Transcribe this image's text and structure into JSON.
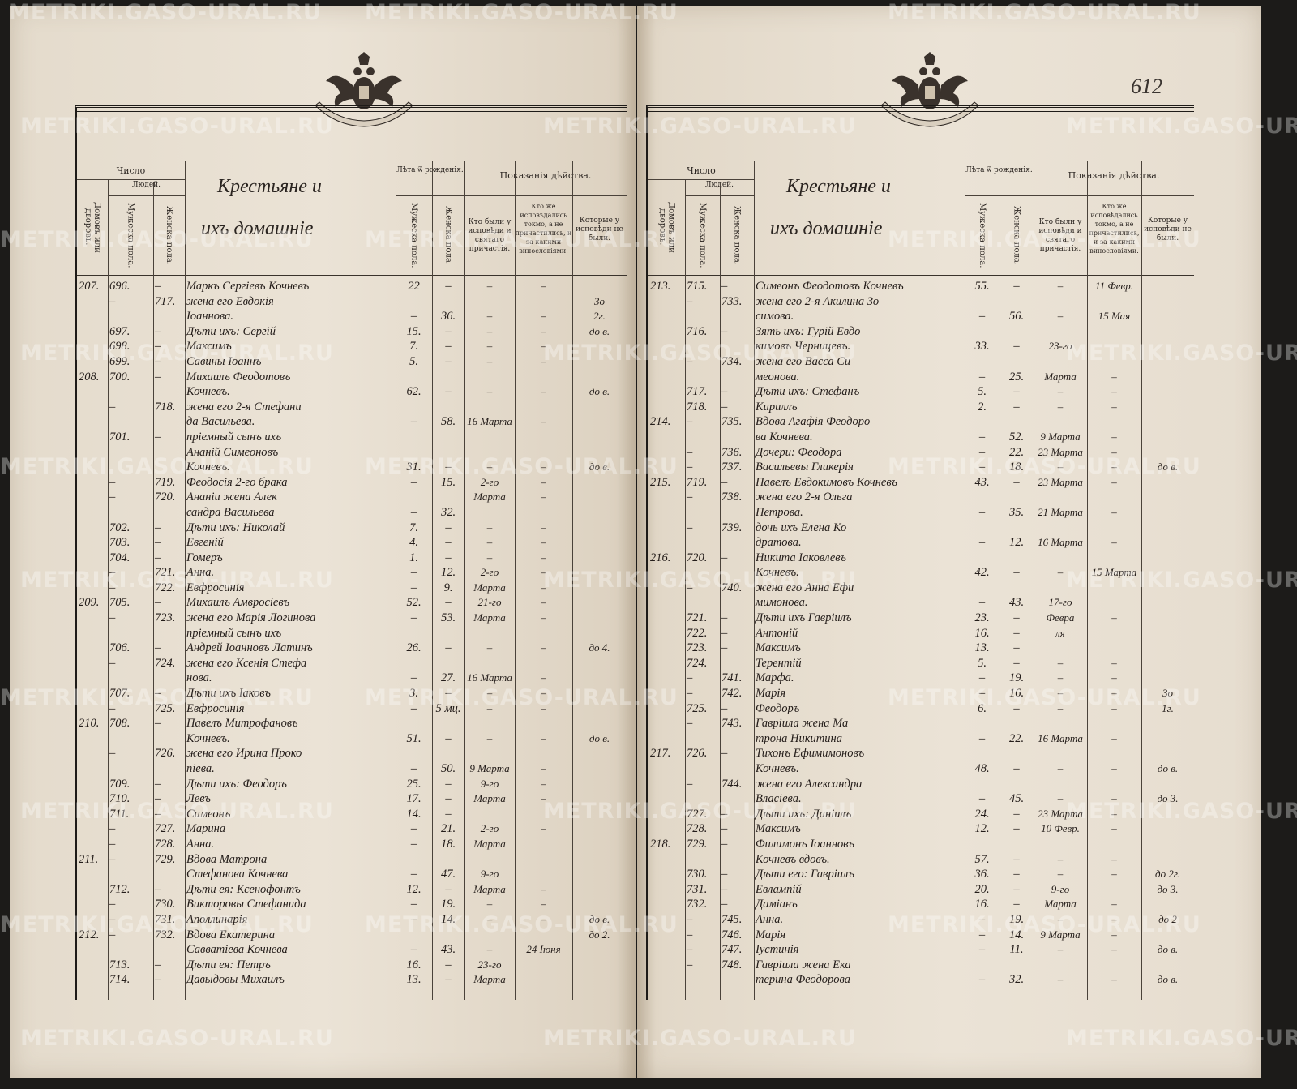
{
  "document": {
    "folio_number": "612",
    "watermark": "METRIKI.GASO-URAL.RU",
    "emblem": "double-headed-eagle-coat-of-arms"
  },
  "header": {
    "number": "Число",
    "people": "Людей.",
    "households": "Домовъ или дворовъ.",
    "male": "Мужеска пола.",
    "female": "Женска пола.",
    "title_line1": "Крестьяне и",
    "title_line2": "ихъ домашніе",
    "age": "Лѣта ѿ рожденія.",
    "age_male": "Мужеска пола.",
    "age_female": "Женска пола.",
    "action": "Показанія дѣйства.",
    "confessed": "Кто были у исповѣди и святаго причастія.",
    "confessed_only": "Кто же исповѣдались токмо, а не причастились, и за какими винословіями.",
    "absent": "Которые у исповѣди не были."
  },
  "left_rows": [
    [
      "207.",
      "696.",
      "–",
      "Маркъ Сергіевъ Кочневъ",
      "22",
      "–",
      "–",
      "–",
      ""
    ],
    [
      "",
      "–",
      "717.",
      "жена его Евдокія",
      "",
      "",
      "",
      "",
      "3о"
    ],
    [
      "",
      "",
      "",
      "Іоаннова.",
      "–",
      "36.",
      "–",
      "–",
      "2г."
    ],
    [
      "",
      "697.",
      "–",
      "Дѣти ихъ: Сергій",
      "15.",
      "–",
      "–",
      "–",
      "до в."
    ],
    [
      "",
      "698.",
      "–",
      "Максимъ",
      "7.",
      "–",
      "–",
      "–",
      ""
    ],
    [
      "",
      "699.",
      "–",
      "Савины Іоаннъ",
      "5.",
      "–",
      "–",
      "–",
      ""
    ],
    [
      "208.",
      "700.",
      "–",
      "Михаилъ Феодотовъ",
      "",
      "",
      "",
      "",
      ""
    ],
    [
      "",
      "",
      "",
      "Кочневъ.",
      "62.",
      "–",
      "–",
      "–",
      "до в."
    ],
    [
      "",
      "–",
      "718.",
      "жена его 2-я Стефани",
      "",
      "",
      "",
      "",
      ""
    ],
    [
      "",
      "",
      "",
      "да Васильева.",
      "–",
      "58.",
      "16 Марта",
      "–",
      ""
    ],
    [
      "",
      "701.",
      "–",
      "пріемный сынъ ихъ",
      "",
      "",
      "",
      "",
      ""
    ],
    [
      "",
      "",
      "",
      "Ананій Симеоновъ",
      "",
      "",
      "",
      "",
      ""
    ],
    [
      "",
      "",
      "",
      "Кочневъ.",
      "31.",
      "–",
      "–",
      "–",
      "до в."
    ],
    [
      "",
      "–",
      "719.",
      "Феодосія 2-го брака",
      "–",
      "15.",
      "2-го",
      "–",
      ""
    ],
    [
      "",
      "–",
      "720.",
      "Ананіи жена Алек",
      "",
      "",
      "Марта",
      "–",
      ""
    ],
    [
      "",
      "",
      "",
      "сандра Васильева",
      "–",
      "32.",
      "",
      "",
      ""
    ],
    [
      "",
      "702.",
      "–",
      "Дѣти ихъ: Николай",
      "7.",
      "–",
      "–",
      "–",
      ""
    ],
    [
      "",
      "703.",
      "–",
      "Евгеній",
      "4.",
      "–",
      "–",
      "–",
      ""
    ],
    [
      "",
      "704.",
      "–",
      "Гомеръ",
      "1.",
      "–",
      "–",
      "–",
      ""
    ],
    [
      "",
      "–",
      "721.",
      "Анна.",
      "–",
      "12.",
      "2-го",
      "–",
      ""
    ],
    [
      "",
      "–",
      "722.",
      "Евфросинія",
      "–",
      "9.",
      "Марта",
      "–",
      ""
    ],
    [
      "209.",
      "705.",
      "–",
      "Михаилъ Амвросіевъ",
      "52.",
      "–",
      "21-го",
      "–",
      ""
    ],
    [
      "",
      "–",
      "723.",
      "жена его Марія Логинова",
      "–",
      "53.",
      "Марта",
      "–",
      ""
    ],
    [
      "",
      "",
      "",
      "пріемный сынъ ихъ",
      "",
      "",
      "",
      "",
      ""
    ],
    [
      "",
      "706.",
      "–",
      "Андрей Іоанновъ Латинъ",
      "26.",
      "–",
      "–",
      "–",
      "до 4."
    ],
    [
      "",
      "–",
      "724.",
      "жена его Ксенія Стефа",
      "",
      "",
      "",
      "",
      ""
    ],
    [
      "",
      "",
      "",
      "нова.",
      "–",
      "27.",
      "16 Марта",
      "–",
      ""
    ],
    [
      "",
      "707.",
      "–",
      "Дѣти ихъ Іаковъ",
      "3.",
      "–",
      "–",
      "–",
      ""
    ],
    [
      "",
      "–",
      "725.",
      "Евфросинія",
      "–",
      "5 мц.",
      "–",
      "–",
      ""
    ],
    [
      "210.",
      "708.",
      "–",
      "Павелъ Митрофановъ",
      "",
      "",
      "",
      "",
      ""
    ],
    [
      "",
      "",
      "",
      "Кочневъ.",
      "51.",
      "–",
      "–",
      "–",
      "до в."
    ],
    [
      "",
      "–",
      "726.",
      "жена его Ирина Проко",
      "",
      "",
      "",
      "",
      ""
    ],
    [
      "",
      "",
      "",
      "піева.",
      "–",
      "50.",
      "9 Марта",
      "–",
      ""
    ],
    [
      "",
      "709.",
      "–",
      "Дѣти ихъ: Феодоръ",
      "25.",
      "–",
      "9-го",
      "–",
      ""
    ],
    [
      "",
      "710.",
      "–",
      "Левъ",
      "17.",
      "–",
      "Марта",
      "–",
      ""
    ],
    [
      "",
      "711.",
      "–",
      "Симеонъ",
      "14.",
      "–",
      "",
      "",
      ""
    ],
    [
      "",
      "–",
      "727.",
      "Марина",
      "–",
      "21.",
      "2-го",
      "–",
      ""
    ],
    [
      "",
      "–",
      "728.",
      "Анна.",
      "–",
      "18.",
      "Марта",
      "",
      ""
    ],
    [
      "211.",
      "–",
      "729.",
      "Вдова Матрона",
      "",
      "",
      "",
      "",
      ""
    ],
    [
      "",
      "",
      "",
      "Стефанова Кочнева",
      "–",
      "47.",
      "9-го",
      "",
      ""
    ],
    [
      "",
      "712.",
      "–",
      "Дѣти ея: Ксенофонтъ",
      "12.",
      "–",
      "Марта",
      "–",
      ""
    ],
    [
      "",
      "–",
      "730.",
      "Викторовы Стефанида",
      "–",
      "19.",
      "–",
      "–",
      ""
    ],
    [
      "",
      "–",
      "731.",
      "Аполлинарія",
      "–",
      "14.",
      "–",
      "–",
      "до в."
    ],
    [
      "212.",
      "–",
      "732.",
      "Вдова Екатерина",
      "",
      "",
      "",
      "",
      "до 2."
    ],
    [
      "",
      "",
      "",
      "Савватіева Кочнева",
      "–",
      "43.",
      "–",
      "24 Іюня",
      ""
    ],
    [
      "",
      "713.",
      "–",
      "Дѣти ея: Петръ",
      "16.",
      "–",
      "23-го",
      "",
      ""
    ],
    [
      "",
      "714.",
      "–",
      "Давыдовы Михаилъ",
      "13.",
      "–",
      "Марта",
      "",
      ""
    ]
  ],
  "right_rows": [
    [
      "213.",
      "715.",
      "–",
      "Симеонъ Феодотовъ Кочневъ",
      "55.",
      "–",
      "–",
      "11 Февр.",
      ""
    ],
    [
      "",
      "–",
      "733.",
      "жена его 2-я Акилина Зо",
      "",
      "",
      "",
      "",
      ""
    ],
    [
      "",
      "",
      "",
      "симова.",
      "–",
      "56.",
      "–",
      "15 Мая",
      ""
    ],
    [
      "",
      "716.",
      "–",
      "Зять ихъ: Гурій Евдо",
      "",
      "",
      "",
      "",
      ""
    ],
    [
      "",
      "",
      "",
      "кимовъ Черницевъ.",
      "33.",
      "–",
      "23-го",
      "",
      ""
    ],
    [
      "",
      "–",
      "734.",
      "жена его Васса Си",
      "",
      "",
      "",
      "",
      ""
    ],
    [
      "",
      "",
      "",
      "меонова.",
      "–",
      "25.",
      "Марта",
      "–",
      ""
    ],
    [
      "",
      "717.",
      "–",
      "Дѣти ихъ: Стефанъ",
      "5.",
      "–",
      "–",
      "–",
      ""
    ],
    [
      "",
      "718.",
      "–",
      "Кириллъ",
      "2.",
      "–",
      "–",
      "–",
      ""
    ],
    [
      "214.",
      "–",
      "735.",
      "Вдова Агафія Феодоро",
      "",
      "",
      "",
      "",
      ""
    ],
    [
      "",
      "",
      "",
      "ва Кочнева.",
      "–",
      "52.",
      "9 Марта",
      "–",
      ""
    ],
    [
      "",
      "–",
      "736.",
      "Дочери: Феодора",
      "–",
      "22.",
      "23 Марта",
      "–",
      ""
    ],
    [
      "",
      "–",
      "737.",
      "Васильевы Гликерія",
      "–",
      "18.",
      "–",
      "–",
      "до в."
    ],
    [
      "215.",
      "719.",
      "–",
      "Павелъ Евдокимовъ Кочневъ",
      "43.",
      "–",
      "23 Марта",
      "–",
      ""
    ],
    [
      "",
      "–",
      "738.",
      "жена его 2-я Ольга",
      "",
      "",
      "",
      "",
      ""
    ],
    [
      "",
      "",
      "",
      "Петрова.",
      "–",
      "35.",
      "21 Марта",
      "–",
      ""
    ],
    [
      "",
      "–",
      "739.",
      "дочь ихъ Елена Ко",
      "",
      "",
      "",
      "",
      ""
    ],
    [
      "",
      "",
      "",
      "дратова.",
      "–",
      "12.",
      "16 Марта",
      "–",
      ""
    ],
    [
      "216.",
      "720.",
      "–",
      "Никита Іаковлевъ",
      "",
      "",
      "",
      "",
      ""
    ],
    [
      "",
      "",
      "",
      "Кочневъ.",
      "42.",
      "–",
      "–",
      "15 Марта",
      ""
    ],
    [
      "",
      "–",
      "740.",
      "жена его Анна Ефи",
      "",
      "",
      "",
      "",
      ""
    ],
    [
      "",
      "",
      "",
      "мимонова.",
      "–",
      "43.",
      "17-го",
      "",
      ""
    ],
    [
      "",
      "721.",
      "–",
      "Дѣти ихъ Гавріилъ",
      "23.",
      "–",
      "Февра",
      "–",
      ""
    ],
    [
      "",
      "722.",
      "–",
      "Антоній",
      "16.",
      "–",
      "ля",
      "",
      ""
    ],
    [
      "",
      "723.",
      "–",
      "Максимъ",
      "13.",
      "–",
      "",
      "",
      ""
    ],
    [
      "",
      "724.",
      "",
      "Терентій",
      "5.",
      "–",
      "–",
      "–",
      ""
    ],
    [
      "",
      "–",
      "741.",
      "Марфа.",
      "–",
      "19.",
      "–",
      "–",
      ""
    ],
    [
      "",
      "–",
      "742.",
      "Марія",
      "–",
      "16.",
      "–",
      "–",
      "3о"
    ],
    [
      "",
      "725.",
      "–",
      "Феодоръ",
      "6.",
      "–",
      "–",
      "–",
      "1г."
    ],
    [
      "",
      "–",
      "743.",
      "Гавріила жена Ма",
      "",
      "",
      "",
      "",
      ""
    ],
    [
      "",
      "",
      "",
      "трона Никитина",
      "–",
      "22.",
      "16 Марта",
      "–",
      ""
    ],
    [
      "217.",
      "726.",
      "–",
      "Тихонъ Ефимимоновъ",
      "",
      "",
      "",
      "",
      ""
    ],
    [
      "",
      "",
      "",
      "Кочневъ.",
      "48.",
      "–",
      "–",
      "–",
      "до в."
    ],
    [
      "",
      "–",
      "744.",
      "жена его Александра",
      "",
      "",
      "",
      "",
      ""
    ],
    [
      "",
      "",
      "",
      "Власіева.",
      "–",
      "45.",
      "–",
      "–",
      "до 3."
    ],
    [
      "",
      "727.",
      "–",
      "Дѣти ихъ: Даніилъ",
      "24.",
      "–",
      "23 Марта",
      "–",
      ""
    ],
    [
      "",
      "728.",
      "–",
      "Максимъ",
      "12.",
      "–",
      "10 Февр.",
      "–",
      ""
    ],
    [
      "218.",
      "729.",
      "–",
      "Филимонъ Іоанновъ",
      "",
      "",
      "",
      "",
      ""
    ],
    [
      "",
      "",
      "",
      "Кочневъ вдовъ.",
      "57.",
      "–",
      "–",
      "–",
      ""
    ],
    [
      "",
      "730.",
      "–",
      "Дѣти его: Гавріилъ",
      "36.",
      "–",
      "–",
      "–",
      "до 2г."
    ],
    [
      "",
      "731.",
      "–",
      "Евлампій",
      "20.",
      "–",
      "9-го",
      "",
      "до 3."
    ],
    [
      "",
      "732.",
      "–",
      "Даміанъ",
      "16.",
      "–",
      "Марта",
      "–",
      ""
    ],
    [
      "",
      "–",
      "745.",
      "Анна.",
      "–",
      "19.",
      "–",
      "–",
      "до 2"
    ],
    [
      "",
      "–",
      "746.",
      "Марія",
      "–",
      "14.",
      "9 Марта",
      "–",
      ""
    ],
    [
      "",
      "–",
      "747.",
      "Іустинія",
      "–",
      "11.",
      "–",
      "–",
      "до в."
    ],
    [
      "",
      "–",
      "748.",
      "Гавріила жена Ека",
      "",
      "",
      "",
      "",
      ""
    ],
    [
      "",
      "",
      "",
      "терина Феодорова",
      "–",
      "32.",
      "–",
      "–",
      "до в."
    ]
  ]
}
